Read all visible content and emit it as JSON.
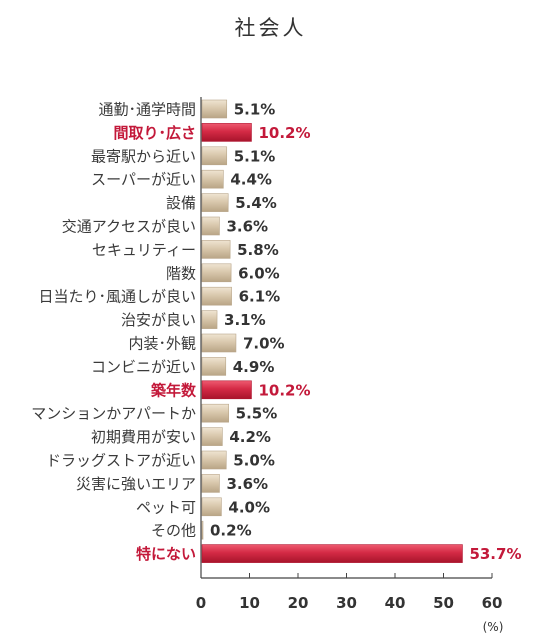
{
  "chart_data": {
    "type": "bar",
    "orientation": "horizontal",
    "title": "社会人",
    "categories": [
      "通勤･通学時間",
      "間取り･広さ",
      "最寄駅から近い",
      "スーパーが近い",
      "設備",
      "交通アクセスが良い",
      "セキュリティー",
      "階数",
      "日当たり･風通しが良い",
      "治安が良い",
      "内装･外観",
      "コンビニが近い",
      "築年数",
      "マンションかアパートか",
      "初期費用が安い",
      "ドラッグストアが近い",
      "災害に強いエリア",
      "ペット可",
      "その他",
      "特にない"
    ],
    "values": [
      5.1,
      10.2,
      5.1,
      4.4,
      5.4,
      3.6,
      5.8,
      6.0,
      6.1,
      3.1,
      7.0,
      4.9,
      10.2,
      5.5,
      4.2,
      5.0,
      3.6,
      4.0,
      0.2,
      53.7
    ],
    "value_labels": [
      "5.1%",
      "10.2%",
      "5.1%",
      "4.4%",
      "5.4%",
      "3.6%",
      "5.8%",
      "6.0%",
      "6.1%",
      "3.1%",
      "7.0%",
      "4.9%",
      "10.2%",
      "5.5%",
      "4.2%",
      "5.0%",
      "3.6%",
      "4.0%",
      "0.2%",
      "53.7%"
    ],
    "highlighted": [
      1,
      12,
      19
    ],
    "xlim": [
      0,
      60
    ],
    "xticks": [
      0,
      10,
      20,
      30,
      40,
      50,
      60
    ],
    "unit": "(%)",
    "grid": false,
    "colors": {
      "bar": "#d9c8ad",
      "bar_edge": "#b8a68a",
      "highlight": "#d42a45",
      "highlight_edge": "#b01530",
      "highlight_text": "#c3193a",
      "axis": "#444444"
    }
  }
}
